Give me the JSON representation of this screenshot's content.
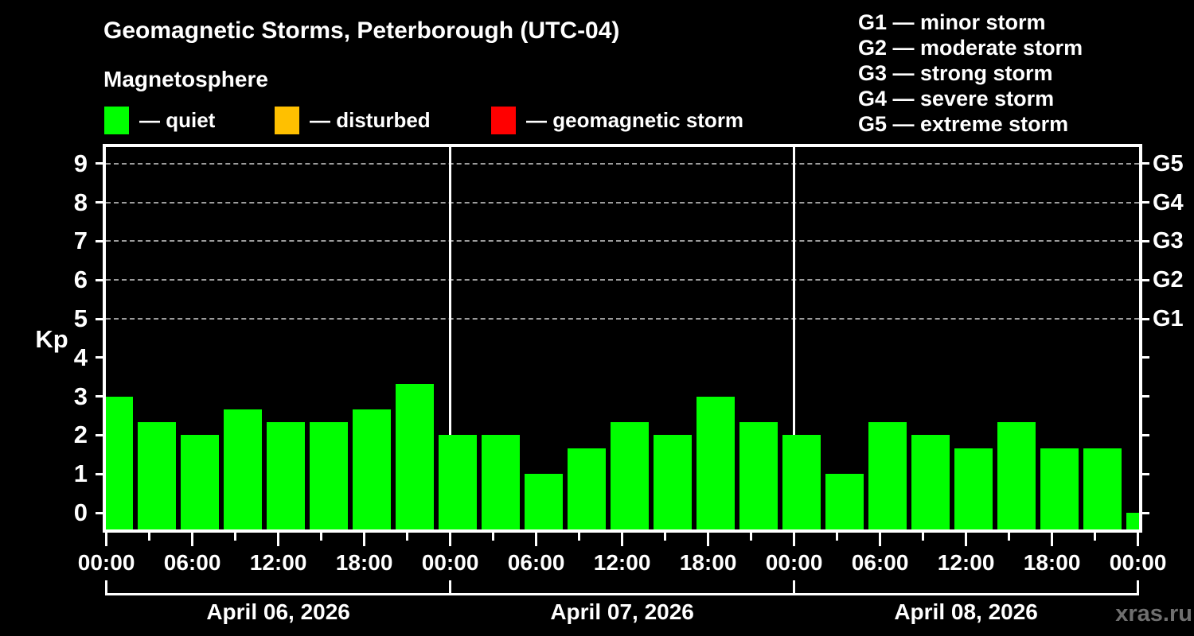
{
  "header": {
    "title": "Geomagnetic Storms, Peterborough (UTC-04)",
    "subtitle": "Magnetosphere"
  },
  "legend": {
    "items": [
      {
        "name": "quiet",
        "label": "— quiet",
        "color": "#00ff00"
      },
      {
        "name": "disturbed",
        "label": "— disturbed",
        "color": "#ffc000"
      },
      {
        "name": "geomagnetic-storm",
        "label": "— geomagnetic storm",
        "color": "#ff0000"
      }
    ]
  },
  "storm_scale": {
    "lines": [
      "G1 — minor storm",
      "G2 — moderate storm",
      "G3 — strong storm",
      "G4 — severe storm",
      "G5 — extreme storm"
    ]
  },
  "watermark": "xras.ru",
  "chart_data": {
    "type": "bar",
    "title": "Geomagnetic Storms, Peterborough (UTC-04)",
    "subtitle": "Magnetosphere",
    "ylabel": "Kp",
    "ylim": [
      0,
      9
    ],
    "yticks": [
      0,
      1,
      2,
      3,
      4,
      5,
      6,
      7,
      8,
      9
    ],
    "gridline_kp_levels": [
      5,
      6,
      7,
      8,
      9
    ],
    "grid": "dashed horizontal lines only at Kp 5-9 (G1-G5 levels)",
    "g_scale_ticks": [
      {
        "kp": 5,
        "label": "G1"
      },
      {
        "kp": 6,
        "label": "G2"
      },
      {
        "kp": 7,
        "label": "G3"
      },
      {
        "kp": 8,
        "label": "G4"
      },
      {
        "kp": 9,
        "label": "G5"
      }
    ],
    "bar_color": "#00ff00",
    "background_color": "#000000",
    "interval_hours": 3,
    "x_tick_labels_6h": [
      "00:00",
      "06:00",
      "12:00",
      "18:00",
      "00:00",
      "06:00",
      "12:00",
      "18:00",
      "00:00",
      "06:00",
      "12:00",
      "18:00",
      "00:00"
    ],
    "days": [
      {
        "date": "April 06, 2026",
        "kp_values": [
          3.0,
          2.33,
          2.0,
          2.67,
          2.33,
          2.33,
          2.67,
          3.33
        ]
      },
      {
        "date": "April 07, 2026",
        "kp_values": [
          2.0,
          2.0,
          1.0,
          1.67,
          2.33,
          2.0,
          3.0,
          2.33
        ]
      },
      {
        "date": "April 08, 2026",
        "kp_values": [
          2.0,
          1.0,
          2.33,
          2.0,
          1.67,
          2.33,
          1.67,
          1.67
        ]
      }
    ],
    "partial_next_interval_kp": 0.0
  }
}
